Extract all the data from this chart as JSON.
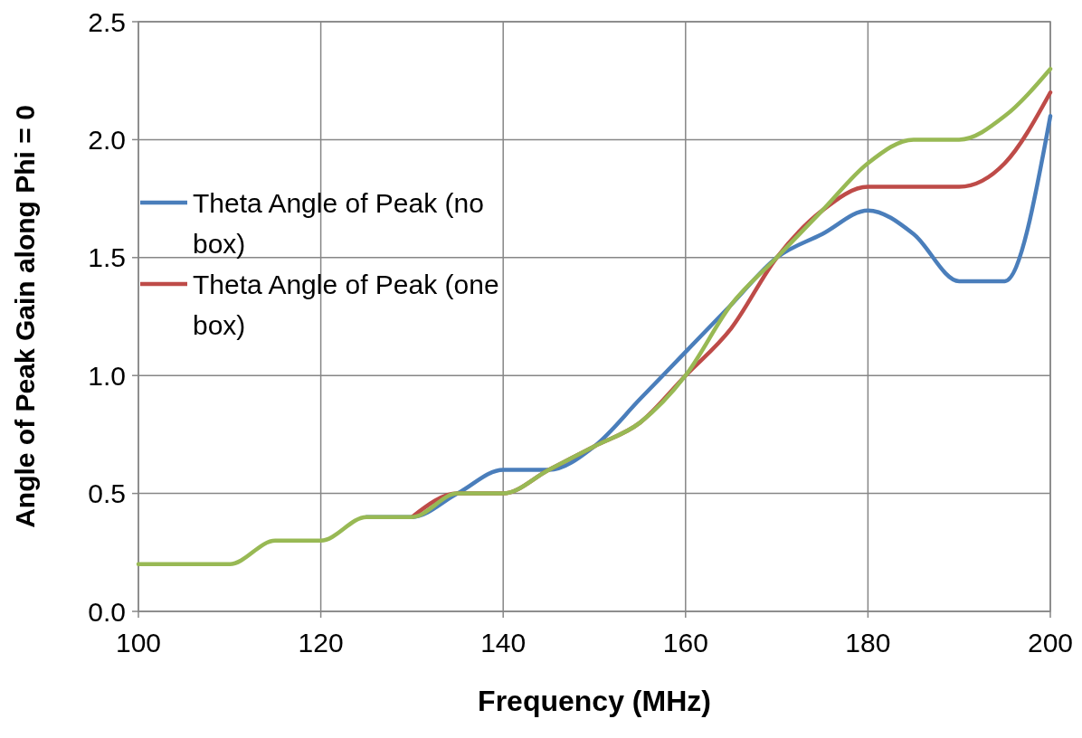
{
  "chart_data": {
    "type": "line",
    "xlabel": "Frequency (MHz)",
    "ylabel": "Angle of Peak Gain along Phi = 0",
    "x": [
      100,
      105,
      110,
      115,
      120,
      125,
      130,
      135,
      140,
      145,
      150,
      155,
      160,
      165,
      170,
      175,
      180,
      185,
      190,
      195,
      200
    ],
    "series": [
      {
        "name": "Theta Angle of Peak (no box)",
        "color": "#4a7ebb",
        "values": [
          null,
          null,
          null,
          null,
          null,
          0.4,
          0.4,
          0.5,
          0.6,
          0.6,
          0.7,
          0.9,
          1.1,
          1.3,
          1.5,
          1.6,
          1.7,
          1.6,
          1.4,
          1.4,
          2.1
        ]
      },
      {
        "name": "Theta Angle of Peak (one box)",
        "color": "#be4b48",
        "values": [
          null,
          null,
          null,
          null,
          null,
          null,
          0.4,
          0.5,
          0.5,
          0.6,
          0.7,
          0.8,
          1.0,
          1.2,
          1.5,
          1.7,
          1.8,
          1.8,
          1.8,
          1.9,
          2.2
        ]
      },
      {
        "color": "#98b954",
        "values": [
          0.2,
          0.2,
          0.2,
          0.3,
          0.3,
          0.4,
          0.4,
          0.5,
          0.5,
          0.6,
          0.7,
          0.8,
          1.0,
          1.3,
          1.5,
          1.7,
          1.9,
          2.0,
          2.0,
          2.1,
          2.3
        ]
      }
    ],
    "xlim": [
      100,
      200
    ],
    "xticks": [
      100,
      120,
      140,
      160,
      180,
      200
    ],
    "ylim": [
      0,
      2.5
    ],
    "yticks": [
      {
        "value": 0,
        "label": "0.0"
      },
      {
        "value": 0.5,
        "label": "0.5"
      },
      {
        "value": 1,
        "label": "1.0"
      },
      {
        "value": 1.5,
        "label": "1.5"
      },
      {
        "value": 2,
        "label": "2.0"
      },
      {
        "value": 2.5,
        "label": "2.5"
      }
    ],
    "grid": true,
    "legend": "left",
    "marker": "none",
    "line_style": "solid"
  }
}
